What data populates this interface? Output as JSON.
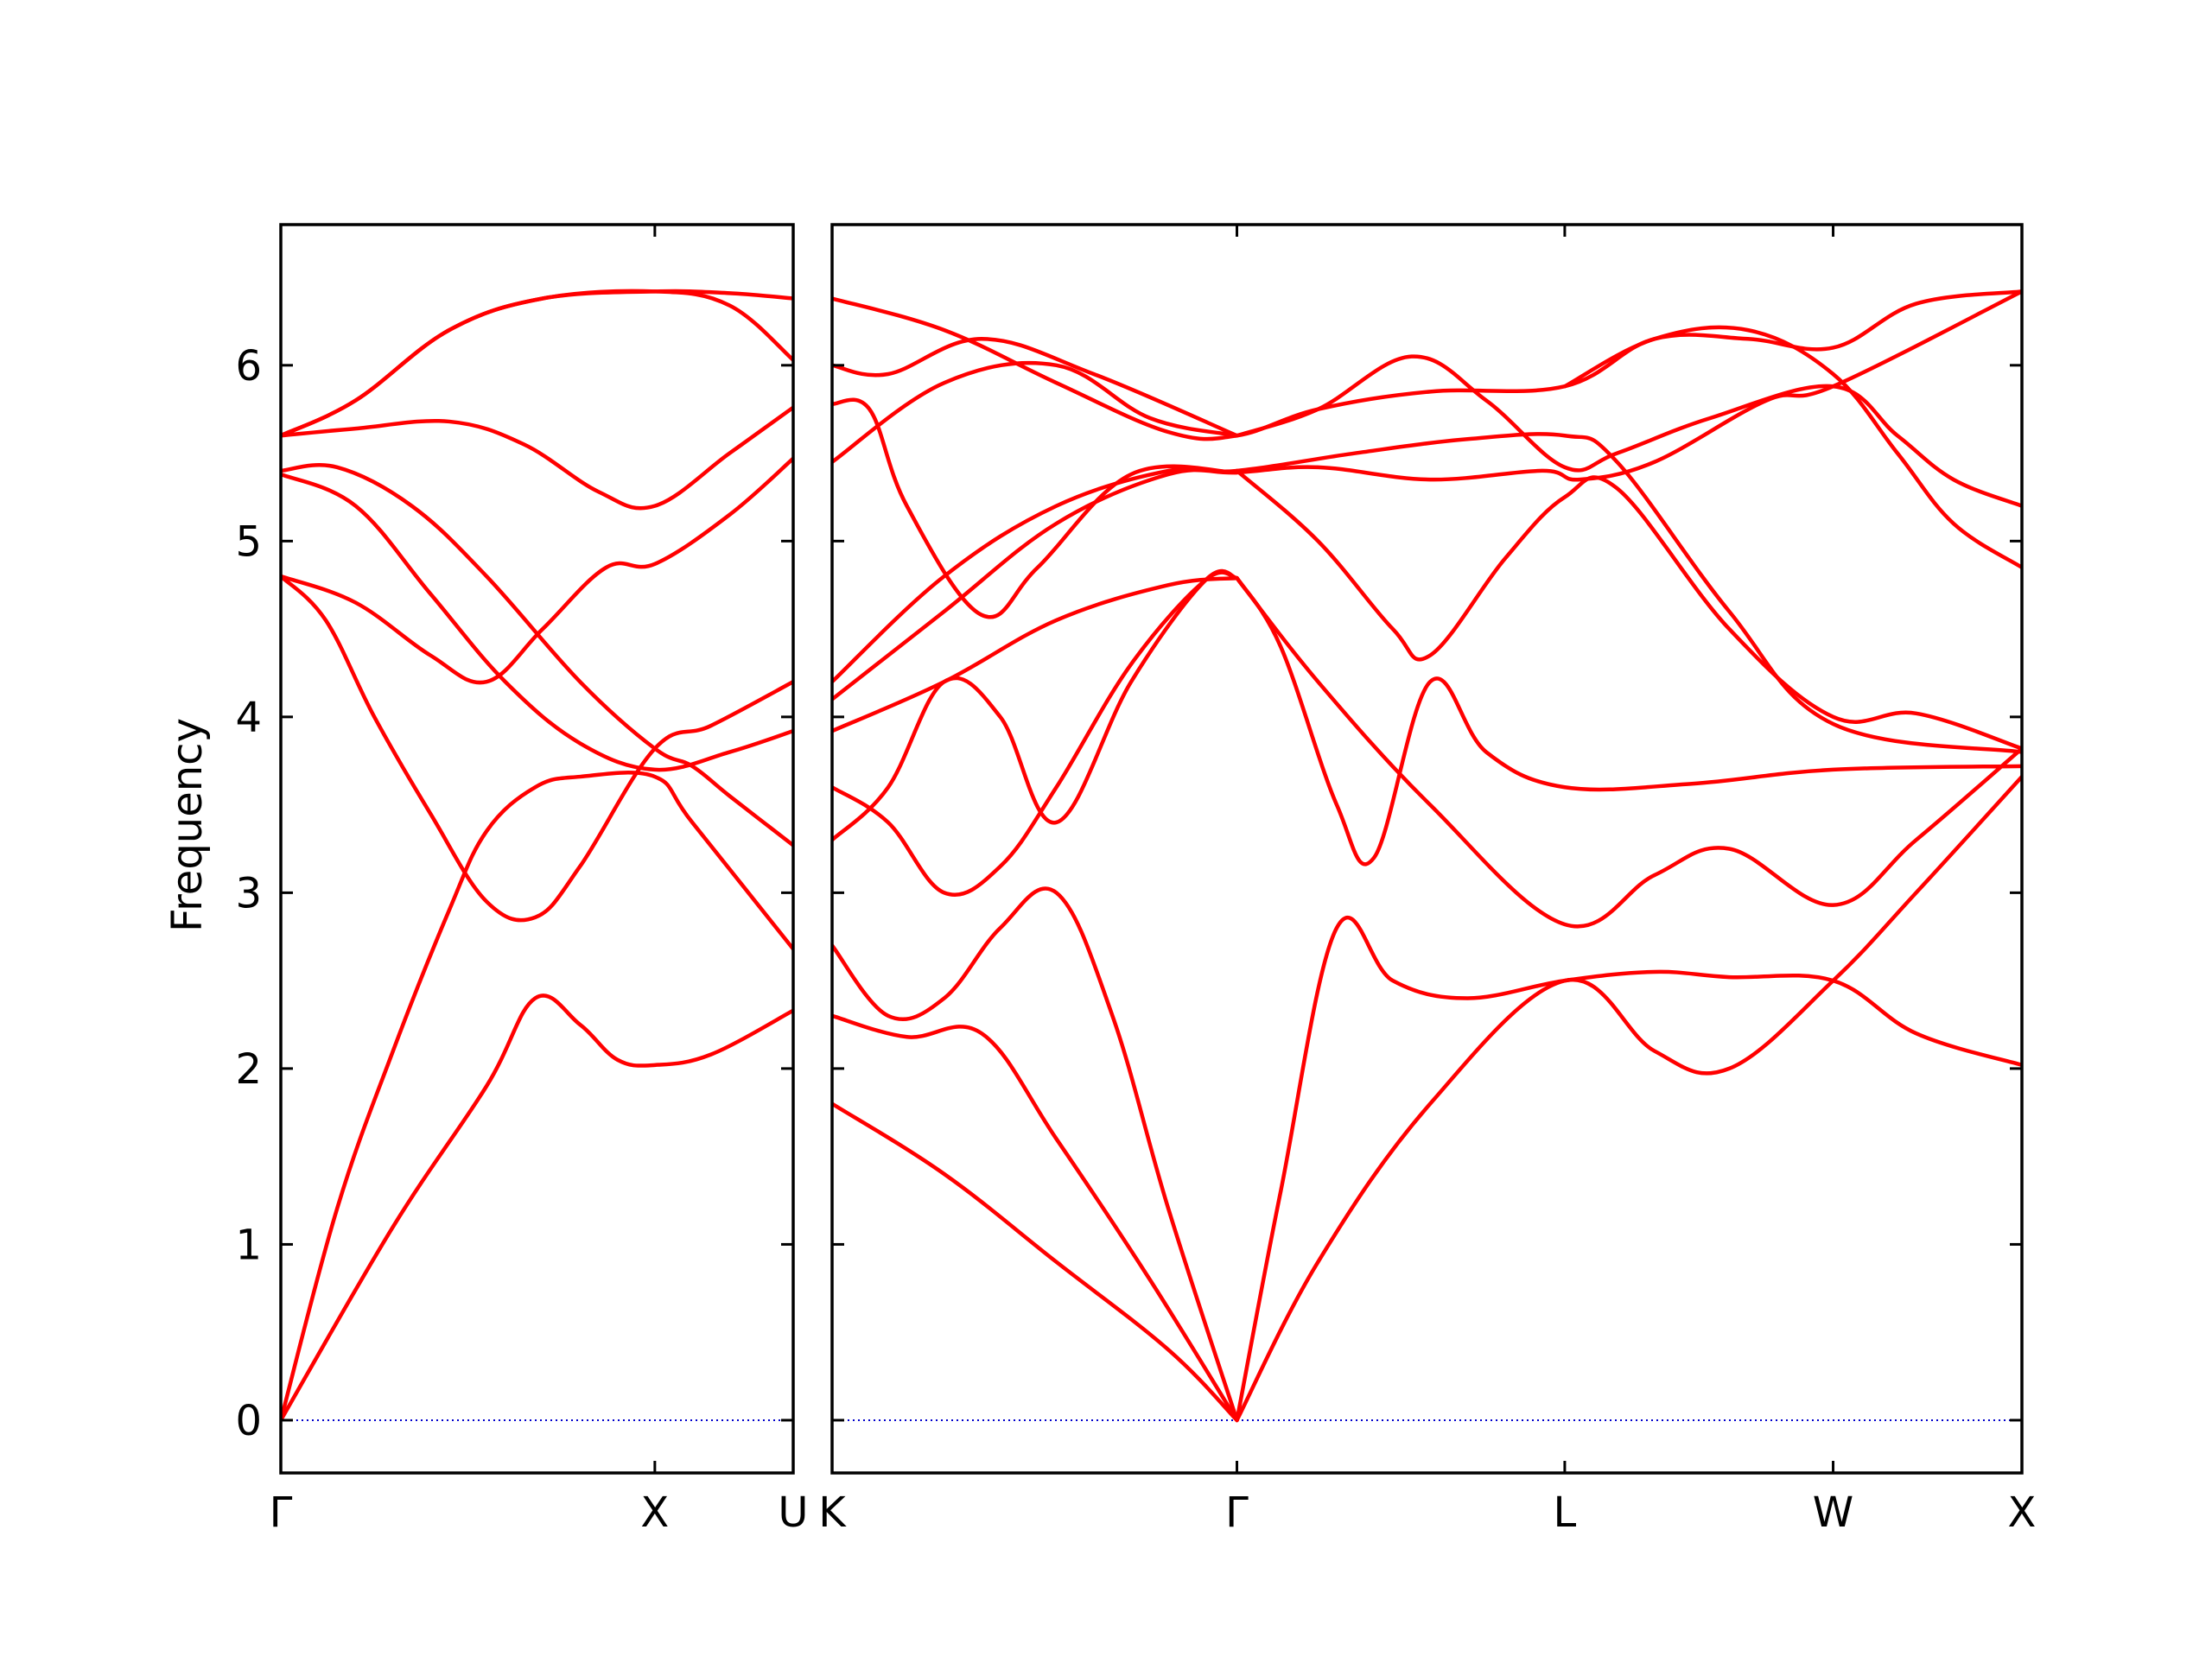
{
  "colors": {
    "band": "#ff0000",
    "zero_line": "#0000cc",
    "axes": "#000000"
  },
  "chart_data": {
    "type": "line",
    "title": "",
    "xlabel": "",
    "ylabel": "Frequency",
    "ylim": [
      -0.3,
      6.8
    ],
    "yticks": [
      0,
      1,
      2,
      3,
      4,
      5,
      6
    ],
    "grid": false,
    "legend": "none",
    "panels": [
      {
        "xlim": [
          0,
          1.37
        ],
        "ticks": [
          {
            "pos": 0,
            "label": "Γ"
          },
          {
            "pos": 1.0,
            "label": "X"
          },
          {
            "pos": 1.37,
            "label": "U"
          }
        ],
        "bands": [
          [
            [
              0,
              0
            ],
            [
              0.3,
              1.1
            ],
            [
              0.55,
              1.9
            ],
            [
              0.68,
              2.4
            ],
            [
              0.8,
              2.25
            ],
            [
              0.9,
              2.05
            ],
            [
              1.0,
              2.02
            ],
            [
              1.15,
              2.08
            ],
            [
              1.37,
              2.33
            ]
          ],
          [
            [
              0,
              0
            ],
            [
              0.15,
              1.2
            ],
            [
              0.3,
              2.1
            ],
            [
              0.45,
              2.9
            ],
            [
              0.55,
              3.35
            ],
            [
              0.68,
              3.6
            ],
            [
              0.8,
              3.66
            ],
            [
              1.0,
              3.66
            ],
            [
              1.1,
              3.4
            ],
            [
              1.37,
              2.68
            ]
          ],
          [
            [
              0,
              4.8
            ],
            [
              0.12,
              4.55
            ],
            [
              0.25,
              4.0
            ],
            [
              0.4,
              3.45
            ],
            [
              0.55,
              2.95
            ],
            [
              0.68,
              2.86
            ],
            [
              0.8,
              3.15
            ],
            [
              1.0,
              3.82
            ],
            [
              1.15,
              3.95
            ],
            [
              1.37,
              4.2
            ]
          ],
          [
            [
              0,
              4.8
            ],
            [
              0.2,
              4.65
            ],
            [
              0.4,
              4.35
            ],
            [
              0.55,
              4.2
            ],
            [
              0.7,
              4.5
            ],
            [
              0.87,
              4.85
            ],
            [
              1.0,
              4.87
            ],
            [
              1.2,
              5.15
            ],
            [
              1.37,
              5.47
            ]
          ],
          [
            [
              0,
              5.38
            ],
            [
              0.2,
              5.2
            ],
            [
              0.4,
              4.7
            ],
            [
              0.6,
              4.2
            ],
            [
              0.8,
              3.85
            ],
            [
              1.0,
              3.7
            ],
            [
              1.2,
              3.8
            ],
            [
              1.37,
              3.92
            ]
          ],
          [
            [
              0,
              5.4
            ],
            [
              0.15,
              5.42
            ],
            [
              0.35,
              5.2
            ],
            [
              0.55,
              4.8
            ],
            [
              0.8,
              4.2
            ],
            [
              1.0,
              3.82
            ],
            [
              1.1,
              3.72
            ],
            [
              1.2,
              3.55
            ],
            [
              1.37,
              3.27
            ]
          ],
          [
            [
              0,
              5.6
            ],
            [
              0.2,
              5.64
            ],
            [
              0.45,
              5.68
            ],
            [
              0.65,
              5.55
            ],
            [
              0.85,
              5.28
            ],
            [
              1.0,
              5.2
            ],
            [
              1.2,
              5.5
            ],
            [
              1.37,
              5.76
            ]
          ],
          [
            [
              0,
              5.6
            ],
            [
              0.2,
              5.8
            ],
            [
              0.45,
              6.2
            ],
            [
              0.7,
              6.38
            ],
            [
              1.0,
              6.42
            ],
            [
              1.2,
              6.34
            ],
            [
              1.37,
              6.03
            ]
          ],
          [
            [
              0,
              5.6
            ],
            [
              0.2,
              5.8
            ],
            [
              0.45,
              6.2
            ],
            [
              0.7,
              6.38
            ],
            [
              1.0,
              6.42
            ],
            [
              1.2,
              6.41
            ],
            [
              1.37,
              6.38
            ]
          ]
        ]
      },
      {
        "xlim": [
          0,
          3.183
        ],
        "ticks": [
          {
            "pos": 0,
            "label": "K"
          },
          {
            "pos": 1.083,
            "label": "Γ"
          },
          {
            "pos": 1.96,
            "label": "L"
          },
          {
            "pos": 2.678,
            "label": "W"
          },
          {
            "pos": 3.183,
            "label": "X"
          }
        ],
        "bands": [
          [
            [
              0,
              1.8
            ],
            [
              0.3,
              1.4
            ],
            [
              0.6,
              0.9
            ],
            [
              0.9,
              0.4
            ],
            [
              1.083,
              0
            ]
          ],
          [
            [
              0,
              2.3
            ],
            [
              0.2,
              2.18
            ],
            [
              0.4,
              2.2
            ],
            [
              0.6,
              1.6
            ],
            [
              0.85,
              0.8
            ],
            [
              1.083,
              0
            ]
          ],
          [
            [
              0,
              2.7
            ],
            [
              0.15,
              2.3
            ],
            [
              0.3,
              2.4
            ],
            [
              0.45,
              2.8
            ],
            [
              0.6,
              3.0
            ],
            [
              0.75,
              2.3
            ],
            [
              0.9,
              1.2
            ],
            [
              1.083,
              0
            ]
          ],
          [
            [
              0,
              3.6
            ],
            [
              0.15,
              3.4
            ],
            [
              0.3,
              3.0
            ],
            [
              0.45,
              3.15
            ],
            [
              0.6,
              3.6
            ],
            [
              0.8,
              4.3
            ],
            [
              1.0,
              4.78
            ],
            [
              1.083,
              4.79
            ]
          ],
          [
            [
              0,
              3.3
            ],
            [
              0.15,
              3.6
            ],
            [
              0.3,
              4.2
            ],
            [
              0.45,
              4.0
            ],
            [
              0.6,
              3.4
            ],
            [
              0.8,
              4.2
            ],
            [
              1.0,
              4.78
            ],
            [
              1.083,
              4.79
            ]
          ],
          [
            [
              1.083,
              0
            ],
            [
              1.2,
              1.3
            ],
            [
              1.35,
              2.8
            ],
            [
              1.5,
              2.5
            ],
            [
              1.7,
              2.4
            ],
            [
              1.96,
              2.5
            ],
            [
              2.2,
              2.55
            ],
            [
              2.4,
              2.52
            ],
            [
              2.678,
              2.5
            ],
            [
              2.9,
              2.2
            ],
            [
              3.183,
              2.02
            ]
          ],
          [
            [
              1.083,
              0
            ],
            [
              1.3,
              0.9
            ],
            [
              1.6,
              1.8
            ],
            [
              1.96,
              2.5
            ],
            [
              2.2,
              2.1
            ],
            [
              2.4,
              2.0
            ],
            [
              2.678,
              2.5
            ],
            [
              2.9,
              3.0
            ],
            [
              3.183,
              3.66
            ]
          ],
          [
            [
              1.083,
              4.79
            ],
            [
              1.2,
              4.4
            ],
            [
              1.35,
              3.5
            ],
            [
              1.45,
              3.2
            ],
            [
              1.6,
              4.2
            ],
            [
              1.75,
              3.8
            ],
            [
              1.96,
              3.6
            ],
            [
              2.3,
              3.62
            ],
            [
              2.678,
              3.7
            ],
            [
              3.183,
              3.72
            ]
          ],
          [
            [
              1.083,
              4.79
            ],
            [
              1.3,
              4.2
            ],
            [
              1.6,
              3.5
            ],
            [
              1.96,
              2.82
            ],
            [
              2.2,
              3.1
            ],
            [
              2.4,
              3.25
            ],
            [
              2.678,
              2.93
            ],
            [
              2.9,
              3.3
            ],
            [
              3.183,
              3.82
            ]
          ],
          [
            [
              1.083,
              5.4
            ],
            [
              1.3,
              5.0
            ],
            [
              1.5,
              4.5
            ],
            [
              1.6,
              4.35
            ],
            [
              1.8,
              4.9
            ],
            [
              1.96,
              5.25
            ],
            [
              2.1,
              5.3
            ],
            [
              2.4,
              4.5
            ],
            [
              2.678,
              4.0
            ],
            [
              2.9,
              4.02
            ],
            [
              3.183,
              3.82
            ]
          ],
          [
            [
              0,
              4.2
            ],
            [
              0.3,
              4.8
            ],
            [
              0.6,
              5.2
            ],
            [
              0.9,
              5.4
            ],
            [
              1.083,
              5.4
            ],
            [
              1.4,
              5.5
            ],
            [
              1.7,
              5.58
            ],
            [
              1.96,
              5.6
            ],
            [
              2.1,
              5.45
            ],
            [
              2.4,
              4.6
            ],
            [
              2.678,
              3.96
            ],
            [
              3.183,
              3.8
            ]
          ],
          [
            [
              0,
              4.1
            ],
            [
              0.3,
              4.6
            ],
            [
              0.6,
              5.1
            ],
            [
              0.9,
              5.38
            ],
            [
              1.083,
              5.39
            ],
            [
              1.3,
              5.42
            ],
            [
              1.6,
              5.35
            ],
            [
              1.9,
              5.4
            ],
            [
              2.0,
              5.35
            ],
            [
              2.2,
              5.45
            ],
            [
              2.5,
              5.8
            ],
            [
              2.678,
              5.88
            ],
            [
              3.183,
              6.42
            ]
          ],
          [
            [
              0,
              3.92
            ],
            [
              0.3,
              4.2
            ],
            [
              0.6,
              4.55
            ],
            [
              0.9,
              4.75
            ],
            [
              1.083,
              4.79
            ]
          ],
          [
            [
              0,
              5.45
            ],
            [
              0.3,
              5.9
            ],
            [
              0.6,
              6.0
            ],
            [
              0.85,
              5.7
            ],
            [
              1.083,
              5.6
            ]
          ],
          [
            [
              0,
              6.0
            ],
            [
              0.15,
              5.95
            ],
            [
              0.4,
              6.15
            ],
            [
              0.7,
              5.95
            ],
            [
              1.083,
              5.6
            ]
          ],
          [
            [
              0,
              6.38
            ],
            [
              0.3,
              6.2
            ],
            [
              0.6,
              5.9
            ],
            [
              0.9,
              5.62
            ],
            [
              1.083,
              5.6
            ],
            [
              1.3,
              5.75
            ],
            [
              1.6,
              5.85
            ],
            [
              1.96,
              5.88
            ],
            [
              2.2,
              6.15
            ],
            [
              2.45,
              6.15
            ],
            [
              2.678,
              6.1
            ],
            [
              2.9,
              6.35
            ],
            [
              3.183,
              6.42
            ]
          ],
          [
            [
              0,
              5.78
            ],
            [
              0.1,
              5.75
            ],
            [
              0.2,
              5.2
            ],
            [
              0.4,
              4.58
            ],
            [
              0.55,
              4.85
            ],
            [
              0.8,
              5.38
            ],
            [
              1.083,
              5.39
            ]
          ],
          [
            [
              1.083,
              5.6
            ],
            [
              1.3,
              5.75
            ],
            [
              1.55,
              6.05
            ],
            [
              1.75,
              5.8
            ],
            [
              1.96,
              5.42
            ],
            [
              2.1,
              5.5
            ],
            [
              2.35,
              5.7
            ],
            [
              2.678,
              5.88
            ],
            [
              2.85,
              5.6
            ],
            [
              3.0,
              5.35
            ],
            [
              3.183,
              5.2
            ]
          ],
          [
            [
              1.96,
              5.88
            ],
            [
              2.2,
              6.15
            ],
            [
              2.45,
              6.2
            ],
            [
              2.678,
              5.95
            ],
            [
              2.85,
              5.5
            ],
            [
              3.0,
              5.1
            ],
            [
              3.183,
              4.85
            ]
          ]
        ]
      }
    ]
  }
}
